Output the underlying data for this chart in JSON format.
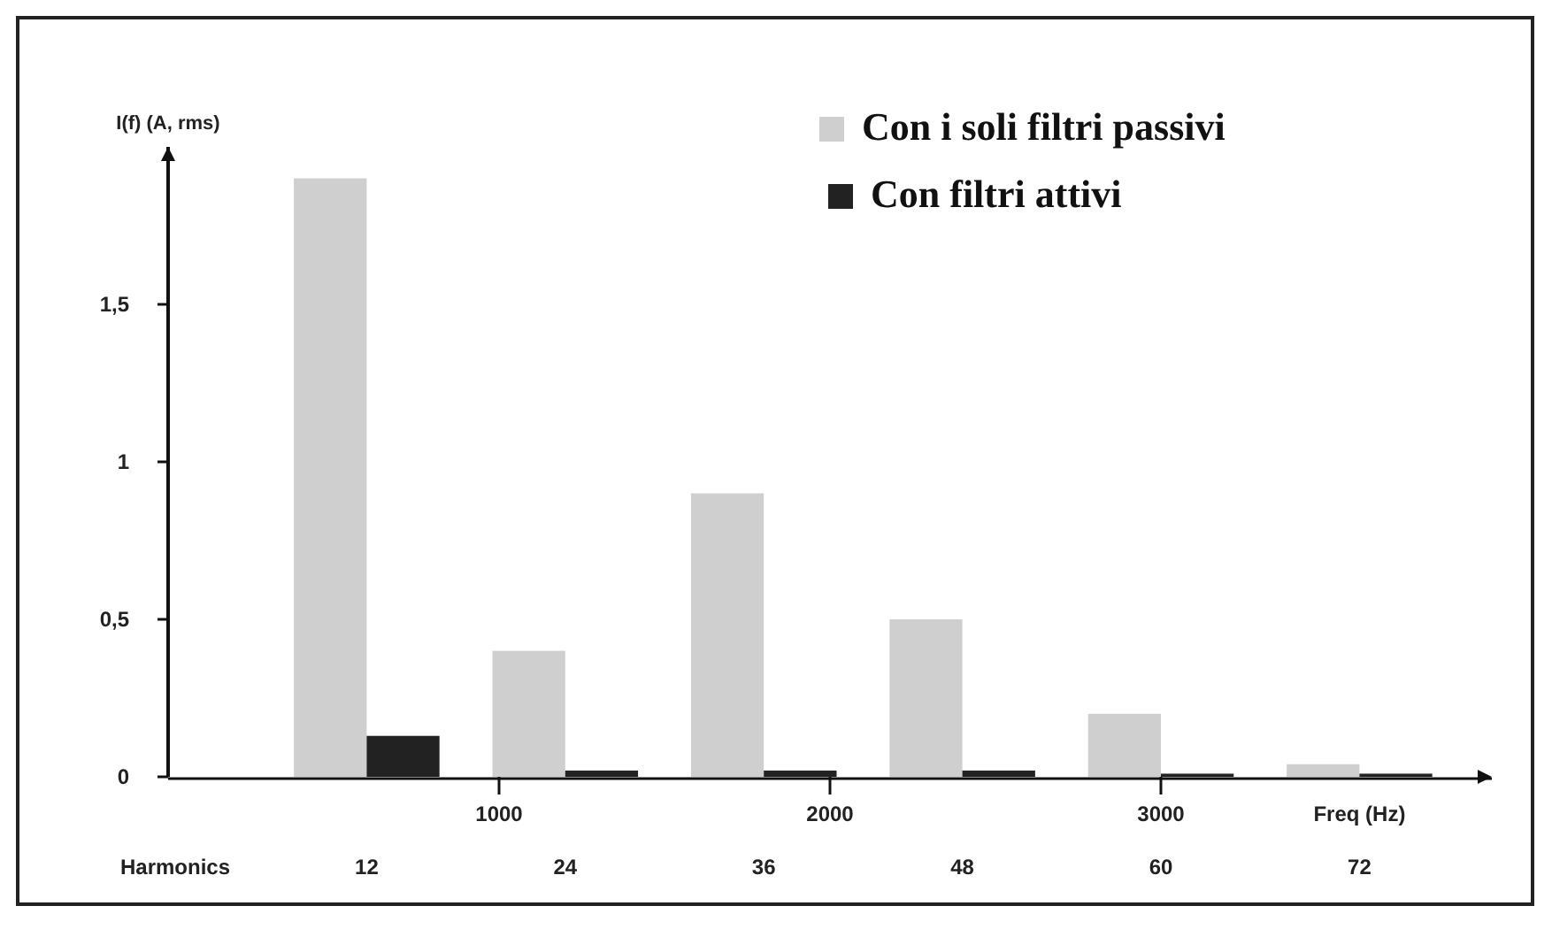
{
  "chart_data": {
    "type": "bar",
    "ylabel": "I(f) (A, rms)",
    "xlabel": "Freq (Hz)",
    "x": [
      600,
      1200,
      1800,
      2400,
      3000,
      3600
    ],
    "x2lim": [
      0,
      80
    ],
    "x2ticks": [
      12,
      24,
      36,
      48,
      60,
      72
    ],
    "x2label": "Harmonics",
    "xlim": [
      0,
      4000
    ],
    "xticks": [
      1000,
      2000,
      3000
    ],
    "ylim": [
      0,
      2
    ],
    "yticks": [
      0,
      {
        "value": 0.5,
        "label": "0,5"
      },
      1,
      {
        "value": 1.5,
        "label": "1,5"
      }
    ],
    "series": [
      {
        "name": "Con i soli filtri passivi",
        "color": "#cfcfcf",
        "values": [
          1.9,
          0.4,
          0.9,
          0.5,
          0.2,
          0.04
        ]
      },
      {
        "name": "Con filtri attivi",
        "color": "#222222",
        "values": [
          0.13,
          0.02,
          0.02,
          0.02,
          0.01,
          0.01
        ]
      }
    ],
    "legend": "top right",
    "grid": false
  }
}
